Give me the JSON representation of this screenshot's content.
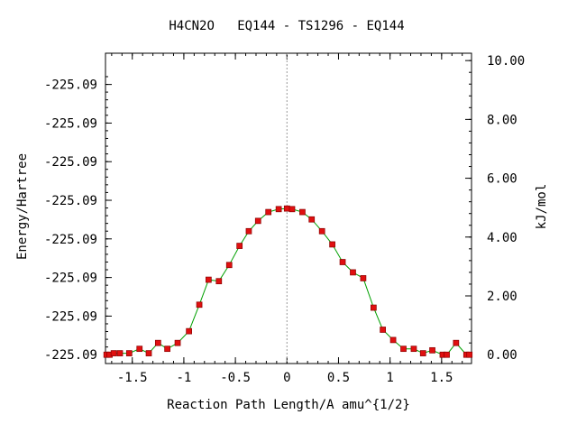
{
  "chart_data": {
    "type": "line",
    "title": "H4CN2O   EQ144 - TS1296 - EQ144",
    "xlabel": "Reaction Path Length/A amu^{1/2}",
    "ylabel_left": "Energy/Hartree",
    "ylabel_right": "kJ/mol",
    "xlim": [
      -1.76,
      1.79
    ],
    "ylim_right": [
      -0.3,
      10.25
    ],
    "x_ticks": [
      -1.5,
      -1,
      -0.5,
      0,
      0.5,
      1,
      1.5
    ],
    "x_tick_labels": [
      "-1.5",
      "-1",
      "-0.5",
      "0",
      "0.5",
      "1",
      "1.5"
    ],
    "left_ticks_kjmol": [
      0.0,
      1.313,
      2.625,
      3.938,
      5.25,
      6.563,
      7.875,
      9.188
    ],
    "left_tick_labels": [
      "-225.09",
      "-225.09",
      "-225.09",
      "-225.09",
      "-225.09",
      "-225.09",
      "-225.09",
      "-225.09"
    ],
    "right_ticks": [
      0,
      2,
      4,
      6,
      8,
      10
    ],
    "right_tick_labels": [
      "0.00",
      "2.00",
      "4.00",
      "6.00",
      "8.00",
      "10.00"
    ],
    "ts_marker_x": 0,
    "grid": false,
    "colors": {
      "line": "#00a000",
      "marker": "#e01010",
      "marker_edge": "#8a0000",
      "ts_line": "#999999",
      "axes": "#000000"
    },
    "series": [
      {
        "x": [
          -1.75,
          -1.72,
          -1.68,
          -1.62,
          -1.53,
          -1.43,
          -1.34,
          -1.25,
          -1.16,
          -1.06,
          -0.95,
          -0.85,
          -0.76,
          -0.66,
          -0.56,
          -0.46,
          -0.37,
          -0.28,
          -0.18,
          -0.08,
          0,
          0.05,
          0.15,
          0.24,
          0.34,
          0.44,
          0.54,
          0.64,
          0.74,
          0.84,
          0.93,
          1.03,
          1.13,
          1.23,
          1.32,
          1.41,
          1.51,
          1.55,
          1.64,
          1.74,
          1.77
        ],
        "y": [
          0.0,
          0.0,
          0.05,
          0.05,
          0.05,
          0.2,
          0.05,
          0.4,
          0.2,
          0.4,
          0.8,
          1.7,
          2.55,
          2.5,
          3.05,
          3.7,
          4.2,
          4.55,
          4.85,
          4.95,
          4.97,
          4.95,
          4.85,
          4.6,
          4.2,
          3.75,
          3.15,
          2.8,
          2.6,
          1.6,
          0.85,
          0.5,
          0.2,
          0.2,
          0.05,
          0.15,
          0.0,
          0.0,
          0.4,
          0.0,
          0.0
        ]
      }
    ]
  }
}
